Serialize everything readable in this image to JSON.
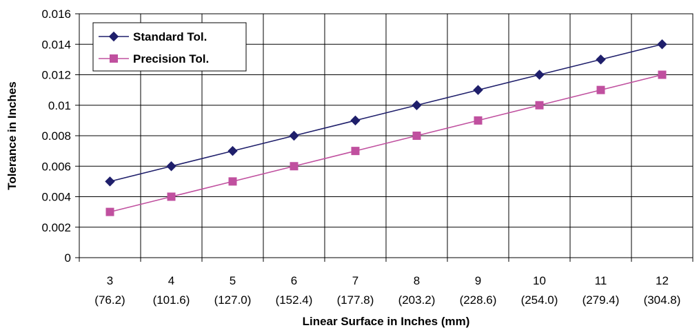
{
  "chart_data": {
    "type": "line",
    "categories": [
      "3",
      "4",
      "5",
      "6",
      "7",
      "8",
      "9",
      "10",
      "11",
      "12"
    ],
    "category_sublabels": [
      "(76.2)",
      "(101.6)",
      "(127.0)",
      "(152.4)",
      "(177.8)",
      "(203.2)",
      "(228.6)",
      "(254.0)",
      "(279.4)",
      "(304.8)"
    ],
    "series": [
      {
        "name": "Standard Tol.",
        "color": "#1f1f6b",
        "marker": "diamond",
        "values": [
          0.005,
          0.006,
          0.007,
          0.008,
          0.009,
          0.01,
          0.011,
          0.012,
          0.013,
          0.014
        ]
      },
      {
        "name": "Precision Tol.",
        "color": "#c0509f",
        "marker": "square",
        "values": [
          0.003,
          0.004,
          0.005,
          0.006,
          0.007,
          0.008,
          0.009,
          0.01,
          0.011,
          0.012
        ]
      }
    ],
    "xlabel": "Linear Surface in Inches (mm)",
    "ylabel": "Tolerance in Inches",
    "ylim": [
      0,
      0.016
    ],
    "yticks": [
      "0",
      "0.002",
      "0.004",
      "0.006",
      "0.008",
      "0.01",
      "0.012",
      "0.014",
      "0.016"
    ],
    "grid": true,
    "legend_position": "top-left"
  }
}
